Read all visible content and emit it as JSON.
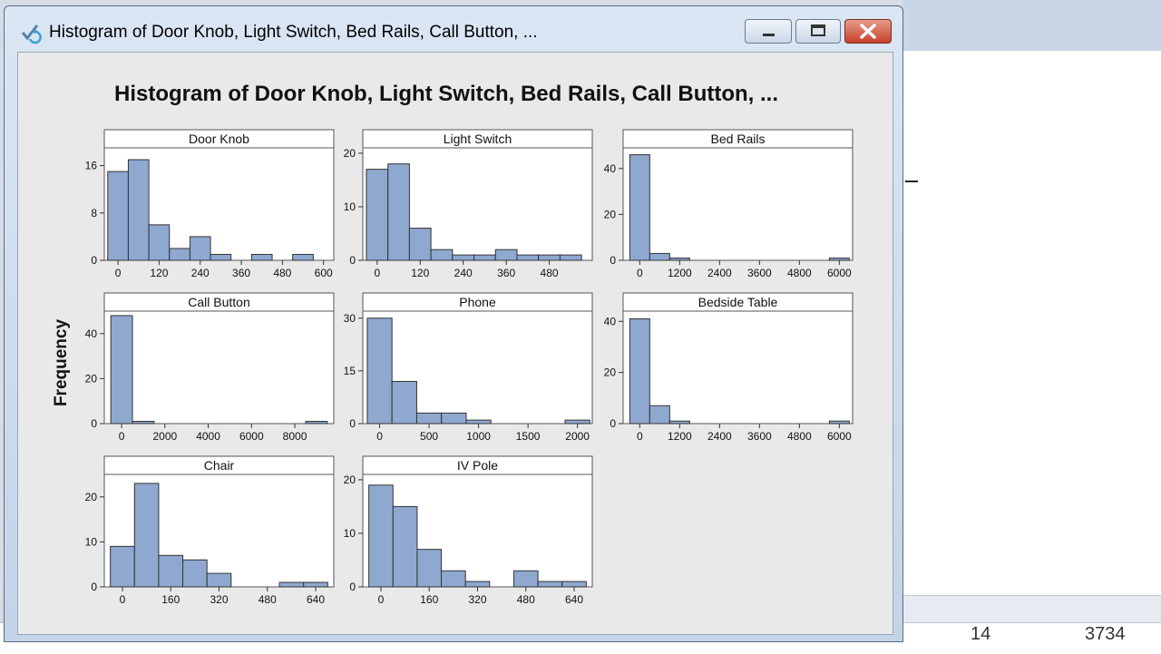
{
  "window": {
    "title": "Histogram of Door Knob, Light Switch, Bed Rails, Call Button, ...",
    "icon": "refresh-graph-icon",
    "buttons": [
      "minimize-icon",
      "restore-icon",
      "close-icon"
    ]
  },
  "background_app": {
    "cells": [
      "14",
      "3734"
    ]
  },
  "chart_data": {
    "type": "bar",
    "title": "Histogram of Door Knob, Light Switch, Bed Rails, Call Button, ...",
    "ylabel": "Frequency",
    "bar_color": "#8fa8d0",
    "bar_edge_color": "#333333",
    "panels": [
      {
        "name": "Door Knob",
        "bin_width": 60,
        "start": -30,
        "values": [
          15,
          17,
          6,
          2,
          4,
          1,
          0,
          1,
          0,
          1
        ],
        "xlim": [
          -40,
          630
        ],
        "ylim": [
          0,
          19
        ],
        "xticks": [
          0,
          120,
          240,
          360,
          480,
          600
        ],
        "xtick_labels": [
          "0",
          "120",
          "240",
          "360",
          "480",
          "600"
        ],
        "yticks": [
          0,
          8,
          16
        ],
        "ytick_labels": [
          "0",
          "8",
          "16"
        ]
      },
      {
        "name": "Light Switch",
        "bin_width": 60,
        "start": -30,
        "values": [
          17,
          18,
          6,
          2,
          1,
          1,
          2,
          1,
          1,
          1
        ],
        "xlim": [
          -40,
          600
        ],
        "ylim": [
          0,
          21
        ],
        "xticks": [
          0,
          120,
          240,
          360,
          480
        ],
        "xtick_labels": [
          "0",
          "120",
          "240",
          "360",
          "480"
        ],
        "yticks": [
          0,
          10,
          20
        ],
        "ytick_labels": [
          "0",
          "10",
          "20"
        ]
      },
      {
        "name": "Bed Rails",
        "bin_width": 600,
        "start": -300,
        "values": [
          46,
          3,
          1,
          0,
          0,
          0,
          0,
          0,
          0,
          0,
          1
        ],
        "xlim": [
          -500,
          6400
        ],
        "ylim": [
          0,
          49
        ],
        "xticks": [
          0,
          1200,
          2400,
          3600,
          4800,
          6000
        ],
        "xtick_labels": [
          "0",
          "1200",
          "2400",
          "3600",
          "4800",
          "6000"
        ],
        "yticks": [
          0,
          20,
          40
        ],
        "ytick_labels": [
          "0",
          "20",
          "40"
        ]
      },
      {
        "name": "Call Button",
        "bin_width": 1000,
        "start": -500,
        "values": [
          48,
          1,
          0,
          0,
          0,
          0,
          0,
          0,
          0,
          1
        ],
        "xlim": [
          -800,
          9800
        ],
        "ylim": [
          0,
          50
        ],
        "xticks": [
          0,
          2000,
          4000,
          6000,
          8000
        ],
        "xtick_labels": [
          "0",
          "2000",
          "4000",
          "6000",
          "8000"
        ],
        "yticks": [
          0,
          20,
          40
        ],
        "ytick_labels": [
          "0",
          "20",
          "40"
        ]
      },
      {
        "name": "Phone",
        "bin_width": 250,
        "start": -125,
        "values": [
          30,
          12,
          3,
          3,
          1,
          0,
          0,
          0,
          1
        ],
        "xlim": [
          -170,
          2150
        ],
        "ylim": [
          0,
          32
        ],
        "xticks": [
          0,
          500,
          1000,
          1500,
          2000
        ],
        "xtick_labels": [
          "0",
          "500",
          "1000",
          "1500",
          "2000"
        ],
        "yticks": [
          0,
          15,
          30
        ],
        "ytick_labels": [
          "0",
          "15",
          "30"
        ]
      },
      {
        "name": "Bedside Table",
        "bin_width": 600,
        "start": -300,
        "values": [
          41,
          7,
          1,
          0,
          0,
          0,
          0,
          0,
          0,
          0,
          1
        ],
        "xlim": [
          -500,
          6400
        ],
        "ylim": [
          0,
          44
        ],
        "xticks": [
          0,
          1200,
          2400,
          3600,
          4800,
          6000
        ],
        "xtick_labels": [
          "0",
          "1200",
          "2400",
          "3600",
          "4800",
          "6000"
        ],
        "yticks": [
          0,
          20,
          40
        ],
        "ytick_labels": [
          "0",
          "20",
          "40"
        ]
      },
      {
        "name": "Chair",
        "bin_width": 80,
        "start": -40,
        "values": [
          9,
          23,
          7,
          6,
          3,
          0,
          0,
          1,
          1
        ],
        "xlim": [
          -60,
          700
        ],
        "ylim": [
          0,
          25
        ],
        "xticks": [
          0,
          160,
          320,
          480,
          640
        ],
        "xtick_labels": [
          "0",
          "160",
          "320",
          "480",
          "640"
        ],
        "yticks": [
          0,
          10,
          20
        ],
        "ytick_labels": [
          "0",
          "10",
          "20"
        ]
      },
      {
        "name": "IV Pole",
        "bin_width": 80,
        "start": -40,
        "values": [
          19,
          15,
          7,
          3,
          1,
          0,
          3,
          1,
          1
        ],
        "xlim": [
          -60,
          700
        ],
        "ylim": [
          0,
          21
        ],
        "xticks": [
          0,
          160,
          320,
          480,
          640
        ],
        "xtick_labels": [
          "0",
          "160",
          "320",
          "480",
          "640"
        ],
        "yticks": [
          0,
          10,
          20
        ],
        "ytick_labels": [
          "0",
          "10",
          "20"
        ]
      }
    ]
  }
}
